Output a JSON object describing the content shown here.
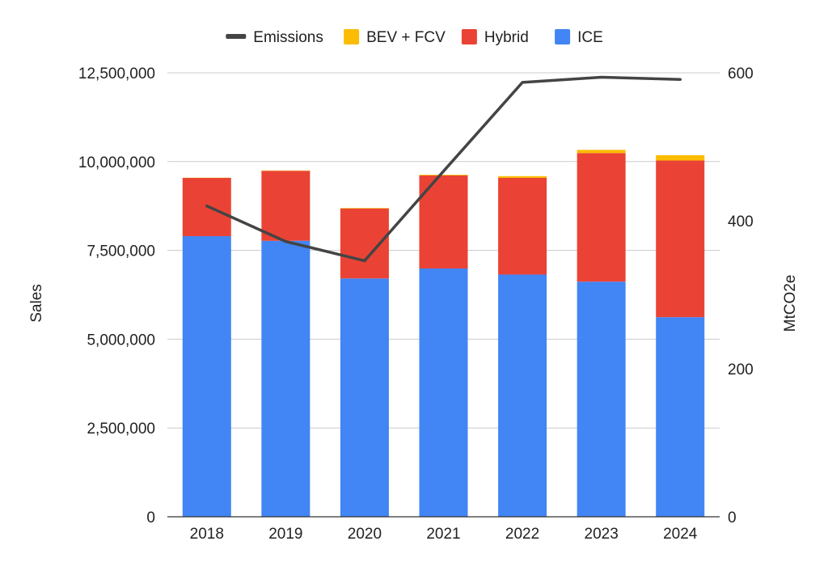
{
  "chart_data": {
    "type": "bar",
    "stacked": true,
    "title": "",
    "xlabel": "",
    "ylabel": "Sales",
    "y2label": "MtCO2e",
    "categories": [
      "2018",
      "2019",
      "2020",
      "2021",
      "2022",
      "2023",
      "2024"
    ],
    "series": [
      {
        "name": "ICE",
        "type": "bar",
        "axis": "left",
        "color": "#4285f4",
        "values": [
          7900000,
          7770000,
          6710000,
          6990000,
          6820000,
          6620000,
          5620000
        ]
      },
      {
        "name": "Hybrid",
        "type": "bar",
        "axis": "left",
        "color": "#ea4335",
        "values": [
          1640000,
          1970000,
          1970000,
          2620000,
          2720000,
          3620000,
          4410000
        ]
      },
      {
        "name": "BEV + FCV",
        "type": "bar",
        "axis": "left",
        "color": "#fbbc04",
        "values": [
          6000,
          10000,
          15000,
          20000,
          50000,
          90000,
          150000
        ]
      },
      {
        "name": "Emissions",
        "type": "line",
        "axis": "right",
        "color": "#444444",
        "values": [
          420,
          372,
          346,
          467,
          587,
          594,
          591
        ]
      }
    ],
    "legend_order": [
      "Emissions",
      "BEV + FCV",
      "Hybrid",
      "ICE"
    ],
    "legend_position": "top",
    "ylim": [
      0,
      12500000
    ],
    "y2lim": [
      0,
      600
    ],
    "y_ticks": [
      "0",
      "2,500,000",
      "5,000,000",
      "7,500,000",
      "10,000,000",
      "12,500,000"
    ],
    "y_tick_values": [
      0,
      2500000,
      5000000,
      7500000,
      10000000,
      12500000
    ],
    "y2_ticks": [
      "0",
      "200",
      "400",
      "600"
    ],
    "y2_tick_values": [
      0,
      200,
      400,
      600
    ],
    "grid": true
  }
}
